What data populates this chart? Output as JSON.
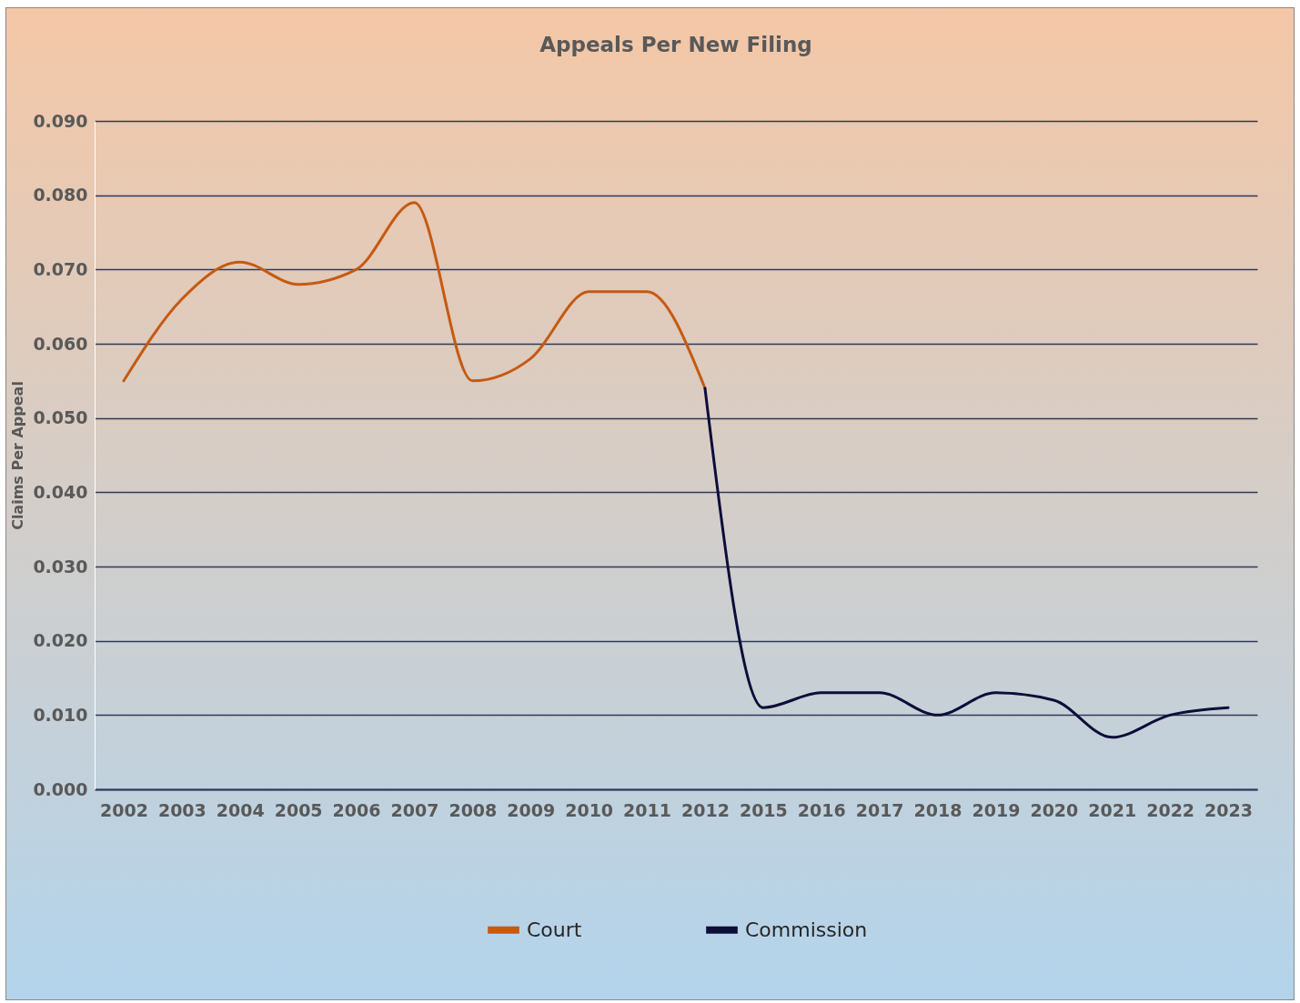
{
  "chart_data": {
    "type": "line",
    "title": "Appeals Per New Filing",
    "ylabel": "Claims Per Appeal",
    "categories": [
      "2002",
      "2003",
      "2004",
      "2005",
      "2006",
      "2007",
      "2008",
      "2009",
      "2010",
      "2011",
      "2012",
      "2015",
      "2016",
      "2017",
      "2018",
      "2019",
      "2020",
      "2021",
      "2022",
      "2023"
    ],
    "series": [
      {
        "name": "Court",
        "color": "#c55a11",
        "values": [
          0.055,
          0.066,
          0.071,
          0.068,
          0.07,
          0.079,
          0.055,
          0.058,
          0.067,
          0.067,
          0.054,
          null,
          null,
          null,
          null,
          null,
          null,
          null,
          null,
          null
        ]
      },
      {
        "name": "Commission",
        "color": "#0d0d3a",
        "values": [
          null,
          null,
          null,
          null,
          null,
          null,
          null,
          null,
          null,
          null,
          0.054,
          0.011,
          0.013,
          0.013,
          0.01,
          0.013,
          0.012,
          0.007,
          0.01,
          0.011
        ]
      }
    ],
    "ylim": [
      0,
      0.09
    ],
    "yticks": [
      {
        "value": 0,
        "label": "0.000"
      },
      {
        "value": 0.01,
        "label": "0.010"
      },
      {
        "value": 0.02,
        "label": "0.020"
      },
      {
        "value": 0.03,
        "label": "0.030"
      },
      {
        "value": 0.04,
        "label": "0.040"
      },
      {
        "value": 0.05,
        "label": "0.050"
      },
      {
        "value": 0.06,
        "label": "0.060"
      },
      {
        "value": 0.07,
        "label": "0.070"
      },
      {
        "value": 0.08,
        "label": "0.080"
      },
      {
        "value": 0.09,
        "label": "0.090"
      }
    ],
    "grid": "y",
    "legend": "bottom",
    "line_style": "solid"
  }
}
